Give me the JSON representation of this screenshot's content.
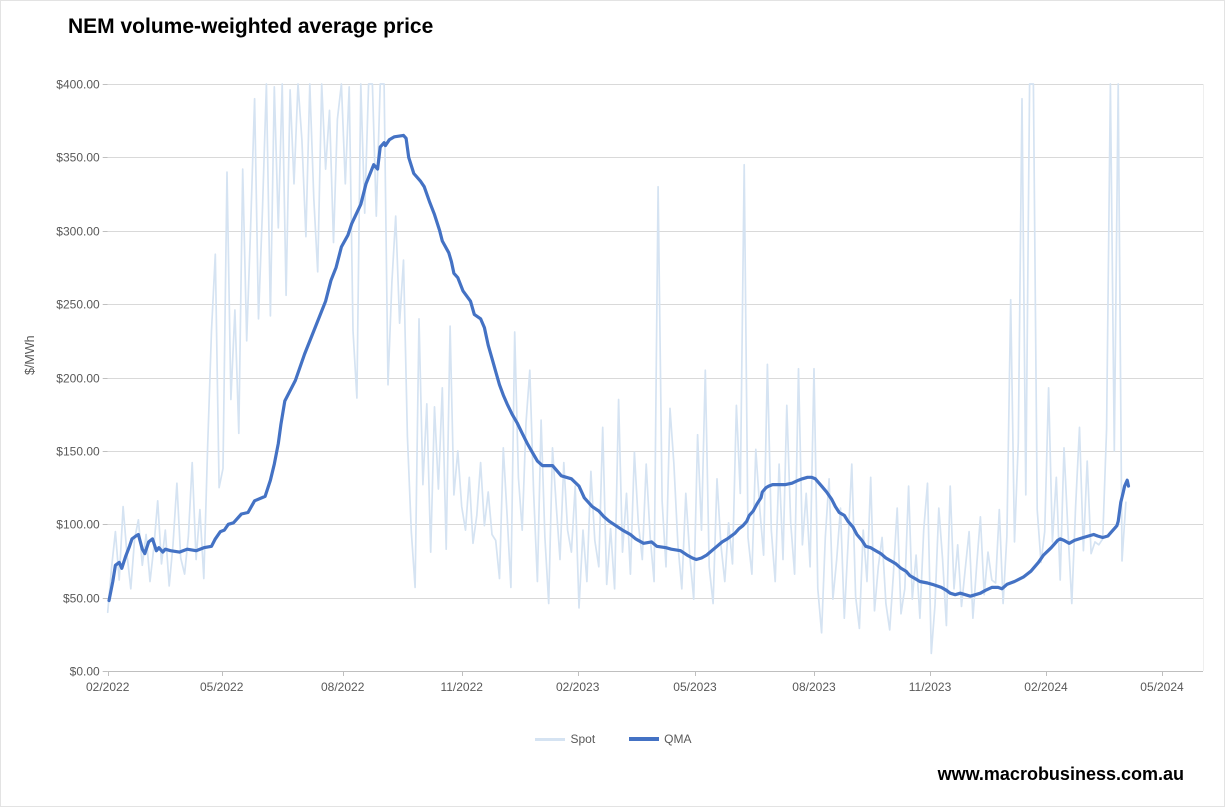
{
  "title": "NEM volume-weighted average price",
  "watermark": "www.macrobusiness.com.au",
  "legend": {
    "spot_label": "Spot",
    "qma_label": "QMA"
  },
  "colors": {
    "spot": "#d5e3f2",
    "qma": "#4472c4",
    "gridline": "#d9d9d9",
    "axis": "#bfbfbf",
    "tick_text": "#595959"
  },
  "chart_data": {
    "type": "line",
    "title": "NEM volume-weighted average price",
    "xlabel": "",
    "ylabel": "$/MWh",
    "ylim": [
      0,
      400
    ],
    "grid": true,
    "legend_position": "bottom",
    "y_ticks": [
      0,
      50,
      100,
      150,
      200,
      250,
      300,
      350,
      400
    ],
    "y_tick_labels": [
      "$0.00",
      "$50.00",
      "$100.00",
      "$150.00",
      "$200.00",
      "$250.00",
      "$300.00",
      "$350.00",
      "$400.00"
    ],
    "x_tick_labels": [
      "02/2022",
      "05/2022",
      "08/2022",
      "11/2022",
      "02/2023",
      "05/2023",
      "08/2023",
      "11/2023",
      "02/2024",
      "05/2024"
    ],
    "x_tick_days": [
      0,
      89,
      181,
      273,
      365,
      454,
      546,
      638,
      730,
      820
    ],
    "x_unit": "days since 2022-02-01",
    "series": [
      {
        "name": "Spot",
        "note": "daily spot price, values in $/MWh, clipped at 400; sampled every 3 days",
        "start_day": 0,
        "step_days": 3,
        "values": [
          40,
          70,
          95,
          62,
          112,
          80,
          56,
          90,
          103,
          72,
          93,
          61,
          84,
          116,
          73,
          96,
          58,
          86,
          128,
          77,
          66,
          92,
          142,
          76,
          110,
          63,
          152,
          232,
          284,
          125,
          138,
          340,
          185,
          246,
          162,
          342,
          225,
          302,
          390,
          240,
          315,
          400,
          242,
          398,
          302,
          400,
          256,
          396,
          332,
          400,
          362,
          296,
          400,
          322,
          272,
          400,
          342,
          382,
          292,
          376,
          400,
          332,
          398,
          232,
          186,
          400,
          312,
          400,
          400,
          310,
          400,
          400,
          195,
          265,
          310,
          237,
          280,
          160,
          95,
          57,
          240,
          127,
          182,
          81,
          180,
          124,
          193,
          83,
          235,
          120,
          150,
          112,
          96,
          132,
          87,
          106,
          142,
          99,
          122,
          93,
          89,
          63,
          152,
          106,
          57,
          231,
          132,
          96,
          169,
          205,
          122,
          61,
          171,
          91,
          46,
          152,
          112,
          76,
          142,
          96,
          81,
          126,
          43,
          96,
          61,
          136,
          89,
          71,
          166,
          59,
          97,
          56,
          185,
          81,
          121,
          66,
          149,
          101,
          76,
          141,
          91,
          61,
          330,
          116,
          71,
          179,
          141,
          86,
          56,
          121,
          79,
          49,
          161,
          96,
          205,
          71,
          46,
          131,
          86,
          61,
          101,
          73,
          181,
          121,
          345,
          91,
          66,
          151,
          111,
          79,
          209,
          96,
          61,
          141,
          76,
          181,
          101,
          66,
          206,
          86,
          121,
          71,
          206,
          56,
          26,
          91,
          131,
          49,
          76,
          111,
          36,
          86,
          141,
          51,
          29,
          96,
          61,
          132,
          41,
          71,
          91,
          46,
          28,
          66,
          111,
          39,
          56,
          126,
          49,
          79,
          36,
          96,
          128,
          12,
          45,
          111,
          76,
          31,
          126,
          56,
          86,
          44,
          70,
          95,
          36,
          72,
          105,
          52,
          81,
          62,
          60,
          110,
          46,
          92,
          253,
          88,
          156,
          390,
          120,
          400,
          400,
          110,
          74,
          95,
          193,
          88,
          132,
          62,
          152,
          96,
          46,
          112,
          166,
          82,
          143,
          80,
          88,
          86,
          90,
          165,
          400,
          150,
          400,
          75,
          115
        ]
      },
      {
        "name": "QMA",
        "note": "quarterly moving average, [day, $/MWh] pairs",
        "points": [
          [
            1,
            48
          ],
          [
            4,
            61
          ],
          [
            6,
            72
          ],
          [
            9,
            74
          ],
          [
            11,
            70
          ],
          [
            14,
            78
          ],
          [
            17,
            85
          ],
          [
            19,
            90
          ],
          [
            22,
            92
          ],
          [
            24,
            93
          ],
          [
            27,
            83
          ],
          [
            29,
            80
          ],
          [
            32,
            88
          ],
          [
            35,
            90
          ],
          [
            38,
            82
          ],
          [
            40,
            84
          ],
          [
            43,
            81
          ],
          [
            45,
            83
          ],
          [
            49,
            82
          ],
          [
            56,
            81
          ],
          [
            62,
            83
          ],
          [
            69,
            82
          ],
          [
            75,
            84
          ],
          [
            81,
            85
          ],
          [
            84,
            90
          ],
          [
            88,
            95
          ],
          [
            91,
            96
          ],
          [
            94,
            100
          ],
          [
            98,
            101
          ],
          [
            104,
            107
          ],
          [
            109,
            108
          ],
          [
            114,
            116
          ],
          [
            122,
            119
          ],
          [
            126,
            130
          ],
          [
            129,
            141
          ],
          [
            132,
            155
          ],
          [
            134,
            168
          ],
          [
            137,
            184
          ],
          [
            145,
            198
          ],
          [
            152,
            216
          ],
          [
            160,
            234
          ],
          [
            168,
            252
          ],
          [
            172,
            266
          ],
          [
            176,
            275
          ],
          [
            180,
            289
          ],
          [
            185,
            297
          ],
          [
            188,
            305
          ],
          [
            195,
            318
          ],
          [
            199,
            332
          ],
          [
            205,
            345
          ],
          [
            208,
            342
          ],
          [
            210,
            357
          ],
          [
            213,
            360
          ],
          [
            214,
            358
          ],
          [
            217,
            362
          ],
          [
            221,
            364
          ],
          [
            228,
            365
          ],
          [
            230,
            363
          ],
          [
            232,
            350
          ],
          [
            236,
            339
          ],
          [
            241,
            334
          ],
          [
            244,
            330
          ],
          [
            248,
            320
          ],
          [
            252,
            311
          ],
          [
            256,
            300
          ],
          [
            258,
            293
          ],
          [
            263,
            285
          ],
          [
            265,
            279
          ],
          [
            267,
            271
          ],
          [
            270,
            268
          ],
          [
            274,
            259
          ],
          [
            280,
            252
          ],
          [
            283,
            243
          ],
          [
            288,
            240
          ],
          [
            291,
            234
          ],
          [
            294,
            222
          ],
          [
            297,
            213
          ],
          [
            300,
            204
          ],
          [
            303,
            195
          ],
          [
            306,
            188
          ],
          [
            309,
            182
          ],
          [
            313,
            175
          ],
          [
            317,
            169
          ],
          [
            321,
            162
          ],
          [
            325,
            155
          ],
          [
            329,
            149
          ],
          [
            333,
            143
          ],
          [
            337,
            140
          ],
          [
            345,
            140
          ],
          [
            352,
            133
          ],
          [
            360,
            131
          ],
          [
            366,
            126
          ],
          [
            370,
            118
          ],
          [
            376,
            112
          ],
          [
            381,
            109
          ],
          [
            385,
            105
          ],
          [
            389,
            102
          ],
          [
            394,
            99
          ],
          [
            399,
            96
          ],
          [
            405,
            93
          ],
          [
            409,
            90
          ],
          [
            415,
            87
          ],
          [
            421,
            88
          ],
          [
            425,
            85
          ],
          [
            432,
            84
          ],
          [
            436,
            83
          ],
          [
            443,
            82
          ],
          [
            448,
            79
          ],
          [
            452,
            77
          ],
          [
            455,
            76
          ],
          [
            459,
            77
          ],
          [
            463,
            79
          ],
          [
            467,
            82
          ],
          [
            471,
            85
          ],
          [
            475,
            88
          ],
          [
            479,
            90
          ],
          [
            482,
            92
          ],
          [
            485,
            94
          ],
          [
            488,
            97
          ],
          [
            491,
            99
          ],
          [
            494,
            102
          ],
          [
            496,
            106
          ],
          [
            499,
            109
          ],
          [
            502,
            114
          ],
          [
            505,
            118
          ],
          [
            506,
            122
          ],
          [
            509,
            125
          ],
          [
            511,
            126
          ],
          [
            514,
            127
          ],
          [
            517,
            127
          ],
          [
            520,
            127
          ],
          [
            524,
            127
          ],
          [
            529,
            128
          ],
          [
            534,
            130
          ],
          [
            537,
            131
          ],
          [
            541,
            132
          ],
          [
            544,
            132
          ],
          [
            547,
            131
          ],
          [
            552,
            126
          ],
          [
            556,
            122
          ],
          [
            560,
            117
          ],
          [
            563,
            112
          ],
          [
            566,
            108
          ],
          [
            570,
            106
          ],
          [
            573,
            102
          ],
          [
            577,
            98
          ],
          [
            580,
            93
          ],
          [
            584,
            89
          ],
          [
            587,
            85
          ],
          [
            591,
            84
          ],
          [
            595,
            82
          ],
          [
            599,
            80
          ],
          [
            603,
            77
          ],
          [
            607,
            75
          ],
          [
            611,
            73
          ],
          [
            615,
            70
          ],
          [
            619,
            68
          ],
          [
            622,
            65
          ],
          [
            626,
            63
          ],
          [
            630,
            61
          ],
          [
            636,
            60
          ],
          [
            640,
            59
          ],
          [
            647,
            57
          ],
          [
            651,
            55
          ],
          [
            654,
            53
          ],
          [
            658,
            52
          ],
          [
            662,
            53
          ],
          [
            666,
            52
          ],
          [
            670,
            51
          ],
          [
            674,
            52
          ],
          [
            678,
            53
          ],
          [
            682,
            55
          ],
          [
            687,
            57
          ],
          [
            692,
            57
          ],
          [
            695,
            56
          ],
          [
            699,
            59
          ],
          [
            705,
            61
          ],
          [
            712,
            64
          ],
          [
            718,
            68
          ],
          [
            724,
            74
          ],
          [
            728,
            79
          ],
          [
            734,
            84
          ],
          [
            739,
            89
          ],
          [
            741,
            90
          ],
          [
            744,
            89
          ],
          [
            748,
            87
          ],
          [
            752,
            89
          ],
          [
            759,
            91
          ],
          [
            767,
            93
          ],
          [
            770,
            92
          ],
          [
            774,
            91
          ],
          [
            778,
            92
          ],
          [
            780,
            94
          ],
          [
            783,
            97
          ],
          [
            785,
            99
          ],
          [
            786,
            102
          ],
          [
            788,
            115
          ],
          [
            790,
            122
          ],
          [
            791,
            126
          ],
          [
            792,
            128
          ],
          [
            793,
            130
          ],
          [
            794,
            126
          ]
        ]
      }
    ]
  }
}
